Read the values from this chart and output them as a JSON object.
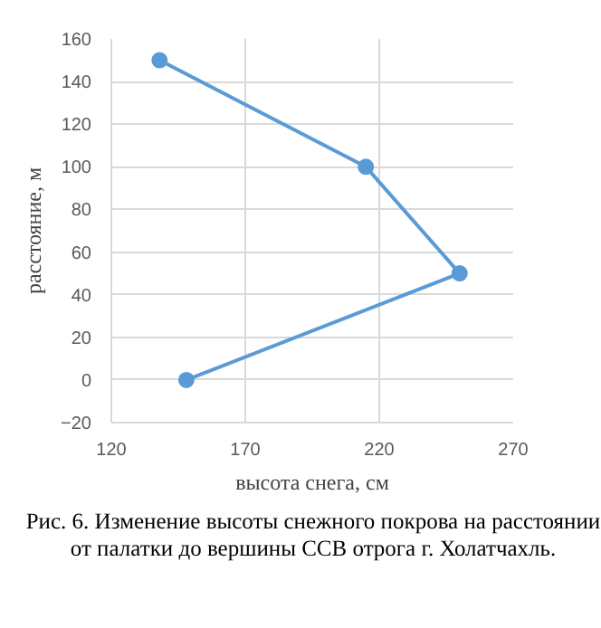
{
  "chart_data": {
    "type": "line",
    "xlabel": "высота снега, см",
    "ylabel": "расстояние, м",
    "x": [
      148,
      250,
      215,
      138
    ],
    "series": [
      {
        "color": "#5b9bd5",
        "values": [
          0,
          50,
          100,
          150
        ]
      }
    ],
    "xlim": [
      120,
      270
    ],
    "xticks": [
      120,
      170,
      220,
      270
    ],
    "ylim": [
      -20,
      160
    ],
    "yticks": [
      -20,
      0,
      20,
      40,
      60,
      80,
      100,
      120,
      140,
      160
    ],
    "grid": true,
    "marker": "circle",
    "line_style": "solid",
    "annotations": [
      "Рис. 6. Изменение высоты снежного покрова на расстоянии от палатки до вершины ССВ отрога г. Холатчахль."
    ]
  }
}
